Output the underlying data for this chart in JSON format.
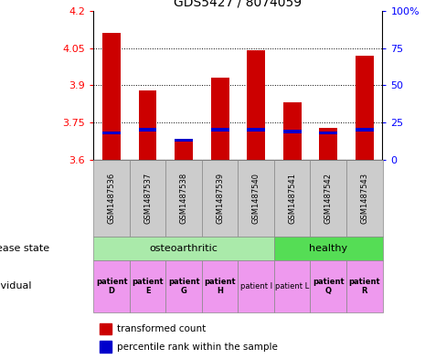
{
  "title": "GDS5427 / 8074059",
  "samples": [
    "GSM1487536",
    "GSM1487537",
    "GSM1487538",
    "GSM1487539",
    "GSM1487540",
    "GSM1487541",
    "GSM1487542",
    "GSM1487543"
  ],
  "red_values": [
    4.11,
    3.88,
    3.68,
    3.93,
    4.04,
    3.83,
    3.73,
    4.02
  ],
  "blue_pct": [
    18,
    20,
    13,
    20,
    20,
    19,
    18,
    20
  ],
  "ymin": 3.6,
  "ymax": 4.2,
  "y2min": 0,
  "y2max": 100,
  "yticks": [
    3.6,
    3.75,
    3.9,
    4.05,
    4.2
  ],
  "ytick_labels": [
    "3.6",
    "3.75",
    "3.9",
    "4.05",
    "4.2"
  ],
  "y2ticks": [
    0,
    25,
    50,
    75,
    100
  ],
  "y2tick_labels": [
    "0",
    "25",
    "50",
    "75",
    "100%"
  ],
  "red_color": "#cc0000",
  "blue_color": "#0000cc",
  "bar_width": 0.5,
  "legend_red": "transformed count",
  "legend_blue": "percentile rank within the sample",
  "osteo_color": "#aaeaaa",
  "healthy_color": "#55dd55",
  "ind_color": "#ee99ee",
  "sample_box_color": "#cccccc",
  "ind_labels": [
    "patient\nD",
    "patient\nE",
    "patient\nG",
    "patient\nH",
    "patient I",
    "patient L",
    "patient\nQ",
    "patient\nR"
  ],
  "ind_bold": [
    true,
    true,
    true,
    true,
    false,
    false,
    true,
    true
  ]
}
